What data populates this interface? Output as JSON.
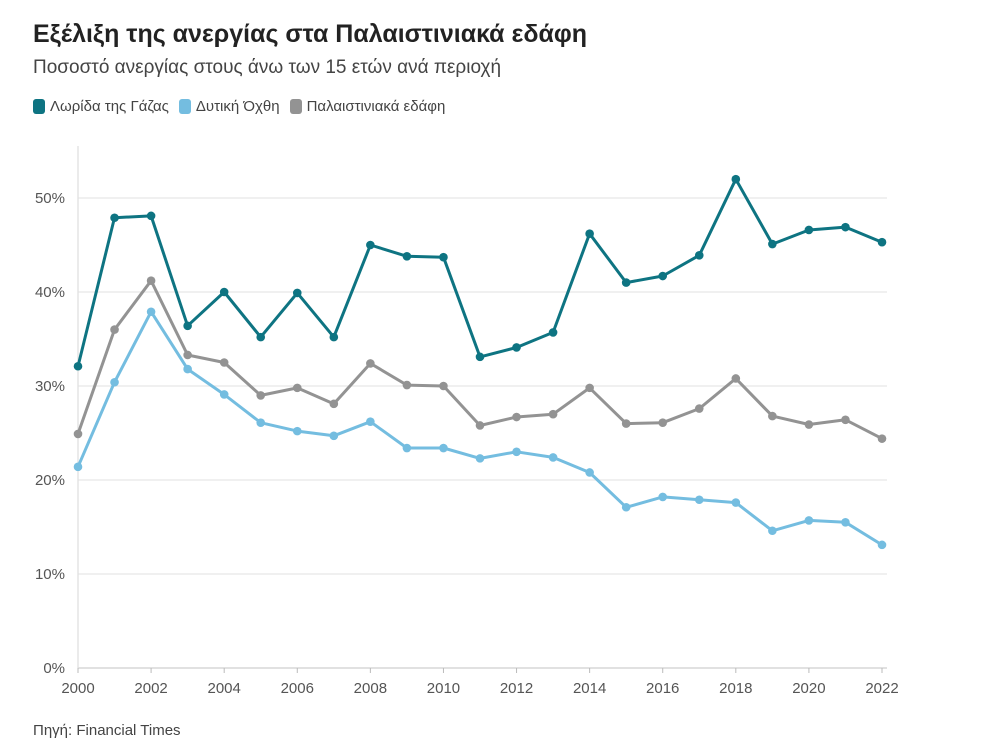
{
  "title": "Εξέλιξη της ανεργίας στα Παλαιστινιακά εδάφη",
  "subtitle": "Ποσοστό ανεργίας στους άνω των 15 ετών ανά περιοχή",
  "source": "Πηγή: Financial Times",
  "chart_data": {
    "type": "line",
    "title": "Εξέλιξη της ανεργίας στα Παλαιστινιακά εδάφη",
    "subtitle": "Ποσοστό ανεργίας στους άνω των 15 ετών ανά περιοχή",
    "xlabel": "",
    "ylabel": "",
    "x": [
      2000,
      2001,
      2002,
      2003,
      2004,
      2005,
      2006,
      2007,
      2008,
      2009,
      2010,
      2011,
      2012,
      2013,
      2014,
      2015,
      2016,
      2017,
      2018,
      2019,
      2020,
      2021,
      2022
    ],
    "xticks": [
      "2000",
      "2002",
      "2004",
      "2006",
      "2008",
      "2010",
      "2012",
      "2014",
      "2016",
      "2018",
      "2020",
      "2022"
    ],
    "yticks": [
      "0%",
      "10%",
      "20%",
      "30%",
      "40%",
      "50%"
    ],
    "ylim": [
      0,
      55
    ],
    "grid": true,
    "legend_position": "top-left",
    "series": [
      {
        "name": "Λωρίδα της Γάζας",
        "color": "#0e7482",
        "values": [
          32.1,
          47.9,
          48.1,
          36.4,
          40.0,
          35.2,
          39.9,
          35.2,
          45.0,
          43.8,
          43.7,
          33.1,
          34.1,
          35.7,
          46.2,
          41.0,
          41.7,
          43.9,
          52.0,
          45.1,
          46.6,
          46.9,
          45.3
        ]
      },
      {
        "name": "Δυτική Όχθη",
        "color": "#74bde0",
        "values": [
          21.4,
          30.4,
          37.9,
          31.8,
          29.1,
          26.1,
          25.2,
          24.7,
          26.2,
          23.4,
          23.4,
          22.3,
          23.0,
          22.4,
          20.8,
          17.1,
          18.2,
          17.9,
          17.6,
          14.6,
          15.7,
          15.5,
          13.1
        ]
      },
      {
        "name": "Παλαιστινιακά εδάφη",
        "color": "#939393",
        "values": [
          24.9,
          36.0,
          41.2,
          33.3,
          32.5,
          29.0,
          29.8,
          28.1,
          32.4,
          30.1,
          30.0,
          25.8,
          26.7,
          27.0,
          29.8,
          26.0,
          26.1,
          27.6,
          30.8,
          26.8,
          25.9,
          26.4,
          24.4
        ]
      }
    ]
  }
}
